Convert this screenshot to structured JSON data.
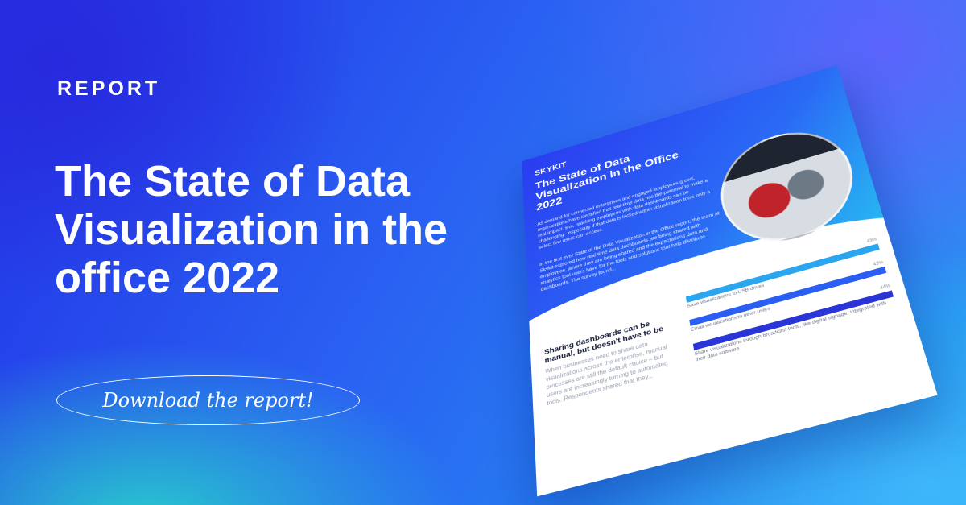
{
  "banner": {
    "eyebrow": "REPORT",
    "headline": "The State of Data Visualization in the office 2022",
    "cta_label": "Download the report!"
  },
  "report": {
    "logo": "SKYKIT",
    "title": "The State of Data Visualization in the Office 2022",
    "intro_1": "As demand for connected enterprises and engaged employees grows, organizations have identified that real-time data has the potential to make a real impact. But, reaching employees with data dashboards can be challenging - especially if that data is locked within visualization tools only a select few users can access.",
    "intro_2": "In the first ever State of the Data Visualization in the Office report, the team at Skykit explored how real-time data dashboards are being shared with employees, where they are being shared and the expectations data and analytics tool users have for the tools and solutions that help distribute dashboards. The survey found...",
    "section_heading": "Sharing dashboards can be manual, but doesn't have to be",
    "section_body": "When businesses need to share data visualizations across the enterprise, manual processes are still the default choice – but users are increasingly turning to automated tools. Respondents shared that they...",
    "bars": [
      {
        "value": "43%",
        "label": "Save visualizations to USB drives"
      },
      {
        "value": "43%",
        "label": "Email visualizations to other users"
      },
      {
        "value": "44%",
        "label": "Share visualizations through broadcast tools, like digital signage, integrated with their data software"
      }
    ]
  }
}
